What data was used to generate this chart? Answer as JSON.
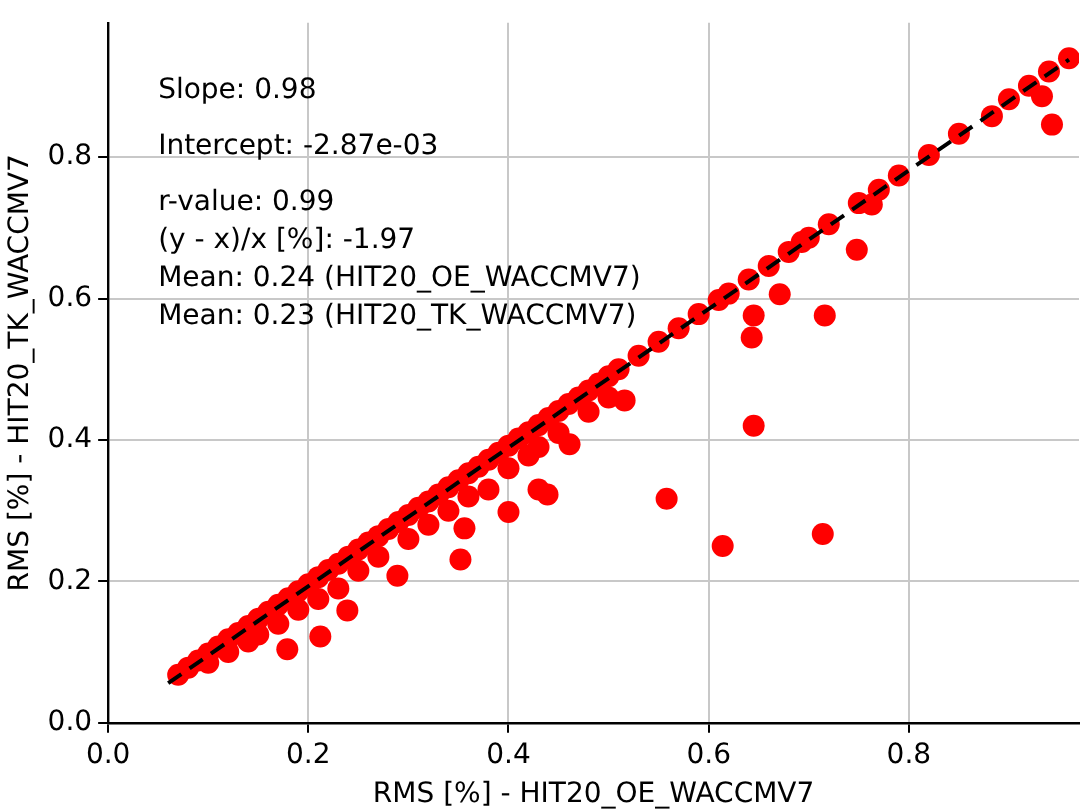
{
  "chart_data": {
    "type": "scatter",
    "xlabel": "RMS [%] - HIT20_OE_WACCMV7",
    "ylabel": "RMS [%] - HIT20_TK_WACCMV7",
    "annotations": [
      "Slope: 0.98",
      "Intercept: -2.87e-03",
      "r-value: 0.99",
      "(y - x)/x [%]: -1.97",
      "Mean: 0.24 (HIT20_OE_WACCMV7)",
      "Mean: 0.23 (HIT20_TK_WACCMV7)"
    ],
    "xlim": [
      0,
      0.97
    ],
    "ylim": [
      0,
      0.99
    ],
    "xticks": [
      {
        "value": 0,
        "label": "0.0"
      },
      {
        "value": 0.2,
        "label": "0.2"
      },
      {
        "value": 0.4,
        "label": "0.4"
      },
      {
        "value": 0.6,
        "label": "0.6"
      },
      {
        "value": 0.8,
        "label": "0.8"
      }
    ],
    "yticks": [
      {
        "value": 0,
        "label": "0.0"
      },
      {
        "value": 0.2,
        "label": "0.2"
      },
      {
        "value": 0.4,
        "label": "0.4"
      },
      {
        "value": 0.6,
        "label": "0.6"
      },
      {
        "value": 0.8,
        "label": "0.8"
      }
    ],
    "grid": true,
    "marker": "circle",
    "series": [
      {
        "type": "scatter",
        "color": "#ff0000",
        "x": [
          0.07,
          0.08,
          0.09,
          0.1,
          0.11,
          0.12,
          0.13,
          0.14,
          0.15,
          0.16,
          0.17,
          0.18,
          0.19,
          0.2,
          0.21,
          0.22,
          0.23,
          0.24,
          0.25,
          0.26,
          0.27,
          0.28,
          0.29,
          0.3,
          0.31,
          0.32,
          0.33,
          0.34,
          0.35,
          0.36,
          0.37,
          0.38,
          0.39,
          0.4,
          0.41,
          0.42,
          0.43,
          0.44,
          0.45,
          0.46,
          0.47,
          0.48,
          0.49,
          0.5,
          0.51,
          0.53,
          0.55,
          0.57,
          0.59,
          0.61,
          0.62,
          0.64,
          0.66,
          0.68,
          0.7,
          0.72,
          0.75,
          0.77,
          0.79,
          0.82,
          0.85,
          0.9,
          0.92,
          0.94,
          0.96,
          0.1,
          0.12,
          0.14,
          0.15,
          0.17,
          0.19,
          0.21,
          0.23,
          0.25,
          0.27,
          0.3,
          0.32,
          0.34,
          0.36,
          0.38,
          0.4,
          0.43,
          0.45,
          0.48,
          0.5,
          0.645,
          0.558,
          0.614,
          0.714,
          0.943,
          0.883,
          0.933,
          0.763,
          0.748,
          0.671,
          0.716,
          0.645,
          0.643,
          0.693,
          0.289,
          0.212,
          0.179,
          0.239,
          0.352,
          0.356,
          0.4,
          0.439,
          0.43,
          0.461,
          0.516,
          0.42
        ],
        "values": [
          0.068,
          0.078,
          0.088,
          0.098,
          0.108,
          0.118,
          0.127,
          0.137,
          0.147,
          0.157,
          0.167,
          0.176,
          0.186,
          0.196,
          0.206,
          0.216,
          0.225,
          0.235,
          0.245,
          0.255,
          0.264,
          0.274,
          0.284,
          0.294,
          0.304,
          0.313,
          0.323,
          0.333,
          0.343,
          0.353,
          0.362,
          0.372,
          0.382,
          0.392,
          0.402,
          0.411,
          0.421,
          0.431,
          0.441,
          0.451,
          0.46,
          0.47,
          0.48,
          0.49,
          0.5,
          0.519,
          0.539,
          0.558,
          0.578,
          0.598,
          0.607,
          0.627,
          0.646,
          0.666,
          0.686,
          0.705,
          0.735,
          0.754,
          0.774,
          0.803,
          0.833,
          0.882,
          0.901,
          0.921,
          0.94,
          0.085,
          0.1,
          0.115,
          0.125,
          0.14,
          0.16,
          0.175,
          0.19,
          0.215,
          0.235,
          0.26,
          0.28,
          0.3,
          0.32,
          0.33,
          0.36,
          0.39,
          0.41,
          0.44,
          0.46,
          0.42,
          0.317,
          0.25,
          0.267,
          0.846,
          0.858,
          0.886,
          0.733,
          0.669,
          0.606,
          0.576,
          0.576,
          0.545,
          0.68,
          0.208,
          0.122,
          0.104,
          0.159,
          0.231,
          0.275,
          0.298,
          0.323,
          0.33,
          0.394,
          0.456,
          0.378
        ]
      },
      {
        "type": "line",
        "color": "#000000",
        "line_style": "dashed",
        "marker": "none",
        "x": [
          0.06,
          0.96
        ],
        "values": [
          0.056,
          0.938
        ]
      }
    ]
  }
}
